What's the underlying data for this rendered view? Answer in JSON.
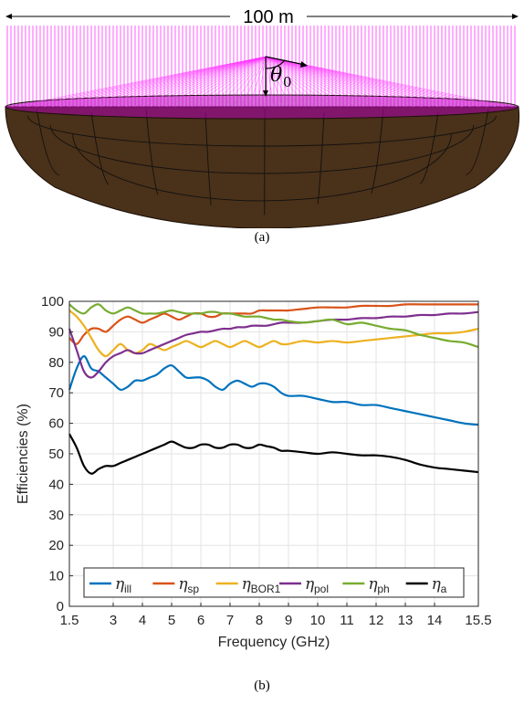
{
  "panel_a": {
    "dimension_label": "100 m",
    "angle_symbol": "θ",
    "angle_subscript": "0",
    "caption": "(a)",
    "colors": {
      "rays": "#ff33ff",
      "dish": "#4a3119",
      "grid": "#111111"
    }
  },
  "panel_b": {
    "caption": "(b)"
  },
  "chart_data": {
    "type": "line",
    "xlabel": "Frequency (GHz)",
    "ylabel": "Efficiencies (%)",
    "xlim": [
      1.5,
      15.5
    ],
    "ylim": [
      0,
      100
    ],
    "xticks": [
      1.5,
      3,
      4,
      5,
      6,
      7,
      8,
      9,
      10,
      11,
      12,
      13,
      14,
      15.5
    ],
    "xtick_labels": [
      "1.5",
      "3",
      "4",
      "5",
      "6",
      "7",
      "8",
      "9",
      "10",
      "11",
      "12",
      "13",
      "14",
      "15.5"
    ],
    "yticks": [
      0,
      10,
      20,
      30,
      40,
      50,
      60,
      70,
      80,
      90,
      100
    ],
    "ytick_labels": [
      "0",
      "10",
      "20",
      "30",
      "40",
      "50",
      "60",
      "70",
      "80",
      "90",
      "100"
    ],
    "grid": true,
    "legend_position": "bottom",
    "x": [
      1.5,
      1.75,
      2.0,
      2.25,
      2.5,
      2.75,
      3.0,
      3.25,
      3.5,
      3.75,
      4.0,
      4.25,
      4.5,
      4.75,
      5.0,
      5.25,
      5.5,
      5.75,
      6.0,
      6.25,
      6.5,
      6.75,
      7.0,
      7.25,
      7.5,
      7.75,
      8.0,
      8.25,
      8.5,
      8.75,
      9.0,
      9.5,
      10.0,
      10.5,
      11.0,
      11.5,
      12.0,
      12.5,
      13.0,
      13.5,
      14.0,
      14.5,
      15.0,
      15.5
    ],
    "series": [
      {
        "name": "ill",
        "color": "#0072bd",
        "values": [
          71,
          78,
          82,
          78,
          77,
          75,
          73,
          71,
          72,
          74,
          74,
          75,
          76,
          78,
          79,
          77,
          75,
          75,
          75,
          74,
          72,
          71,
          73,
          74,
          73,
          72,
          73,
          73,
          72,
          70,
          69,
          69,
          68,
          67,
          67,
          66,
          66,
          65,
          64,
          63,
          62,
          61,
          60,
          59.5
        ]
      },
      {
        "name": "sp",
        "color": "#d95319",
        "values": [
          88,
          86,
          89,
          91,
          91,
          90,
          92,
          94,
          95,
          94,
          93,
          94,
          95,
          96,
          95,
          94,
          95,
          96,
          96,
          95,
          95,
          96,
          96,
          96,
          96,
          96,
          97,
          97,
          97,
          97,
          97,
          97.5,
          98,
          98,
          98,
          98.5,
          98.5,
          98.5,
          99,
          99,
          99,
          99,
          99,
          99
        ]
      },
      {
        "name": "BOR1",
        "color": "#edb120",
        "values": [
          97,
          95,
          92,
          88,
          84,
          82,
          84,
          86,
          84,
          83,
          84,
          86,
          85,
          84,
          85,
          86,
          87,
          86,
          85,
          86,
          87,
          86,
          85,
          86,
          87,
          86,
          85,
          86,
          87,
          86,
          86,
          87,
          86.5,
          87,
          86.5,
          87,
          87.5,
          88,
          88.5,
          89,
          89.5,
          89.5,
          90,
          91
        ]
      },
      {
        "name": "pol",
        "color": "#7e2f8e",
        "values": [
          91,
          84,
          77,
          75,
          77,
          80,
          82,
          83,
          84,
          83,
          83,
          84,
          85,
          86,
          87,
          88,
          89,
          89.5,
          90,
          90,
          90.5,
          91,
          91,
          91.5,
          91.5,
          92,
          92,
          92,
          92.5,
          93,
          93,
          93,
          93.5,
          94,
          94,
          94.5,
          94.5,
          95,
          95,
          95.5,
          95.5,
          96,
          96,
          96.5
        ]
      },
      {
        "name": "ph",
        "color": "#77ac30",
        "values": [
          99,
          97,
          96,
          98,
          99,
          97,
          96,
          97,
          98,
          97,
          96,
          96,
          96,
          96.5,
          97,
          96.5,
          96,
          96,
          96,
          96.5,
          96.5,
          96,
          96,
          95.5,
          95,
          95,
          95,
          94.5,
          94,
          94,
          93.5,
          93,
          93.5,
          94,
          92.5,
          93,
          92,
          91,
          90.5,
          89,
          88,
          87,
          86.5,
          85
        ]
      },
      {
        "name": "a",
        "color": "#000000",
        "values": [
          56.5,
          52,
          46,
          43.5,
          45,
          46,
          46,
          47,
          48,
          49,
          50,
          51,
          52,
          53,
          54,
          53,
          52,
          52,
          53,
          53,
          52,
          52,
          53,
          53,
          52,
          52,
          53,
          52.5,
          52,
          51,
          51,
          50.5,
          50,
          50.5,
          50,
          49.5,
          49.5,
          49,
          48,
          46.5,
          45.5,
          45,
          44.5,
          44
        ]
      }
    ]
  }
}
